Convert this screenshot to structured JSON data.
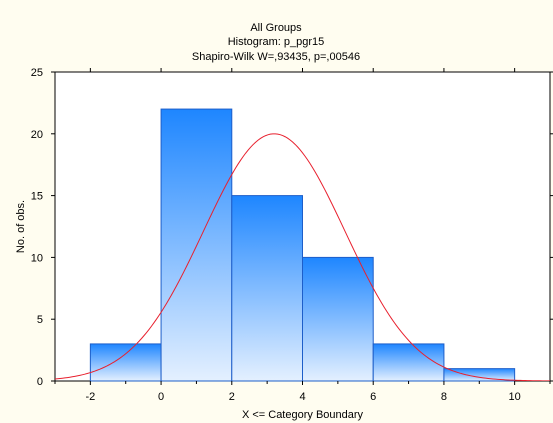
{
  "colors": {
    "background": "#fffdf0",
    "plot_background": "#ffffff",
    "bar_top": "#1e86ff",
    "bar_bottom": "#e4f0ff",
    "bar_stroke": "#1d5ec9",
    "curve": "#e8202e",
    "axis": "#000000"
  },
  "chart_data": {
    "type": "bar",
    "subtype": "histogram",
    "title": "All Groups",
    "subtitle": "Histogram: p_pgr15",
    "subtitle2": "Shapiro-Wilk W=,93435, p=,00546",
    "xlabel": "X <= Category Boundary",
    "ylabel": "No. of obs.",
    "xlim": [
      -3,
      11
    ],
    "ylim": [
      0,
      25
    ],
    "grid": false,
    "bins": [
      {
        "from": -2,
        "to": 0,
        "value": 3
      },
      {
        "from": 0,
        "to": 2,
        "value": 22
      },
      {
        "from": 2,
        "to": 4,
        "value": 15
      },
      {
        "from": 4,
        "to": 6,
        "value": 10
      },
      {
        "from": 6,
        "to": 8,
        "value": 3
      },
      {
        "from": 8,
        "to": 10,
        "value": 1
      }
    ],
    "x_ticks": [
      "-2",
      "0",
      "2",
      "4",
      "6",
      "8",
      "10"
    ],
    "y_ticks": [
      "0",
      "5",
      "10",
      "15",
      "20",
      "25"
    ],
    "normal_curve": {
      "mean": 3.2,
      "peak": 20,
      "sd": 2.0
    }
  }
}
